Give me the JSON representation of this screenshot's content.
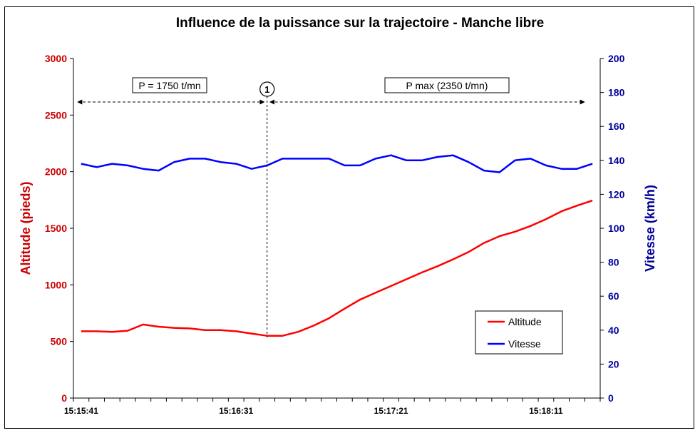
{
  "chart_data": {
    "type": "line",
    "title": "Influence de la puissance sur la trajectoire - Manche libre",
    "xlabel": "",
    "x_ticks": [
      "15:15:41",
      "15:16:31",
      "15:17:21",
      "15:18:11"
    ],
    "x": [
      "15:15:41",
      "15:15:46",
      "15:15:51",
      "15:15:56",
      "15:16:01",
      "15:16:06",
      "15:16:11",
      "15:16:16",
      "15:16:21",
      "15:16:26",
      "15:16:31",
      "15:16:36",
      "15:16:41",
      "15:16:46",
      "15:16:51",
      "15:16:56",
      "15:17:01",
      "15:17:06",
      "15:17:11",
      "15:17:16",
      "15:17:21",
      "15:17:26",
      "15:17:31",
      "15:17:36",
      "15:17:41",
      "15:17:46",
      "15:17:51",
      "15:17:56",
      "15:18:01",
      "15:18:06",
      "15:18:11",
      "15:18:16",
      "15:18:21",
      "15:18:26"
    ],
    "y_left": {
      "label": "Altitude (pieds)",
      "lim": [
        0,
        3000
      ],
      "ticks": [
        0,
        500,
        1000,
        1500,
        2000,
        2500,
        3000
      ],
      "color": "#cc0000"
    },
    "y_right": {
      "label": "Vitesse (km/h)",
      "lim": [
        0,
        200
      ],
      "ticks": [
        0,
        20,
        40,
        60,
        80,
        100,
        120,
        140,
        160,
        180,
        200
      ],
      "color": "#000099"
    },
    "series": [
      {
        "name": "Altitude",
        "axis": "left",
        "color": "#ff0000",
        "values": [
          590,
          590,
          585,
          595,
          650,
          630,
          620,
          615,
          600,
          600,
          590,
          570,
          550,
          550,
          585,
          640,
          705,
          790,
          870,
          930,
          990,
          1050,
          1110,
          1165,
          1225,
          1290,
          1370,
          1430,
          1470,
          1520,
          1580,
          1650,
          1700,
          1745
        ]
      },
      {
        "name": "Vitesse",
        "axis": "right",
        "color": "#0000ff",
        "values": [
          138,
          136,
          138,
          137,
          135,
          134,
          139,
          141,
          141,
          139,
          138,
          135,
          137,
          141,
          141,
          141,
          141,
          137,
          137,
          141,
          143,
          140,
          140,
          142,
          143,
          139,
          134,
          133,
          140,
          141,
          137,
          135,
          135,
          138
        ]
      }
    ],
    "annotations": {
      "left_label": "P = 1750 t/mn",
      "right_label": "P max (2350 t/mn)",
      "marker": "1",
      "marker_x": "15:16:41"
    },
    "legend": {
      "position": "bottom-right",
      "entries": [
        "Altitude",
        "Vitesse"
      ]
    },
    "grid": false
  }
}
